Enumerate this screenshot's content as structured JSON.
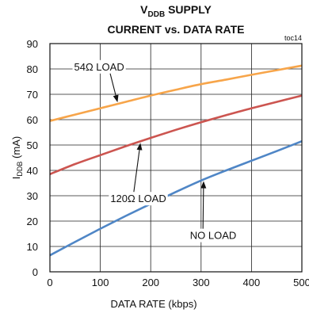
{
  "chart_data": {
    "type": "line",
    "title_line1_main": "V",
    "title_line1_sub": "DDB",
    "title_line1_rest": " SUPPLY",
    "title_line2": "CURRENT vs. DATA RATE",
    "figure_id": "toc14",
    "xlabel": "DATA RATE (kbps)",
    "ylabel_main": "I",
    "ylabel_sub": "DDB",
    "ylabel_rest": " (mA)",
    "xlim": [
      0,
      500
    ],
    "ylim": [
      0,
      90
    ],
    "xticks": [
      "0",
      "100",
      "200",
      "300",
      "400",
      "500"
    ],
    "yticks": [
      "0",
      "10",
      "20",
      "30",
      "40",
      "50",
      "60",
      "70",
      "80",
      "90"
    ],
    "grid": true,
    "series": [
      {
        "name": "54Ω LOAD",
        "color": "#f7a54a",
        "x": [
          0,
          50,
          100,
          150,
          200,
          250,
          300,
          350,
          400,
          450,
          500
        ],
        "y": [
          59.5,
          62,
          64.5,
          67,
          69.5,
          71.8,
          74,
          75.8,
          77.7,
          79.5,
          81.3
        ]
      },
      {
        "name": "120Ω LOAD",
        "color": "#cc5550",
        "x": [
          0,
          50,
          100,
          150,
          200,
          250,
          300,
          350,
          400,
          450,
          500
        ],
        "y": [
          38.5,
          42.5,
          46,
          49.5,
          52.8,
          56,
          59,
          61.8,
          64.5,
          67,
          69.5
        ]
      },
      {
        "name": "NO LOAD",
        "color": "#4f86c6",
        "x": [
          0,
          50,
          100,
          150,
          200,
          250,
          300,
          350,
          400,
          450,
          500
        ],
        "y": [
          6.5,
          11.8,
          17,
          22,
          26.8,
          31.5,
          36,
          40,
          43.8,
          47.6,
          51.5
        ]
      }
    ],
    "annotations": [
      {
        "text": "54Ω LOAD",
        "series": 0,
        "label_x": 48,
        "label_y": 81,
        "point_x": 135
      },
      {
        "text": "120Ω LOAD",
        "series": 1,
        "label_x": 120,
        "label_y": 29,
        "point_x": 180
      },
      {
        "text": "NO LOAD",
        "series": 2,
        "label_x": 278,
        "label_y": 14.5,
        "point_x": 305
      }
    ]
  }
}
